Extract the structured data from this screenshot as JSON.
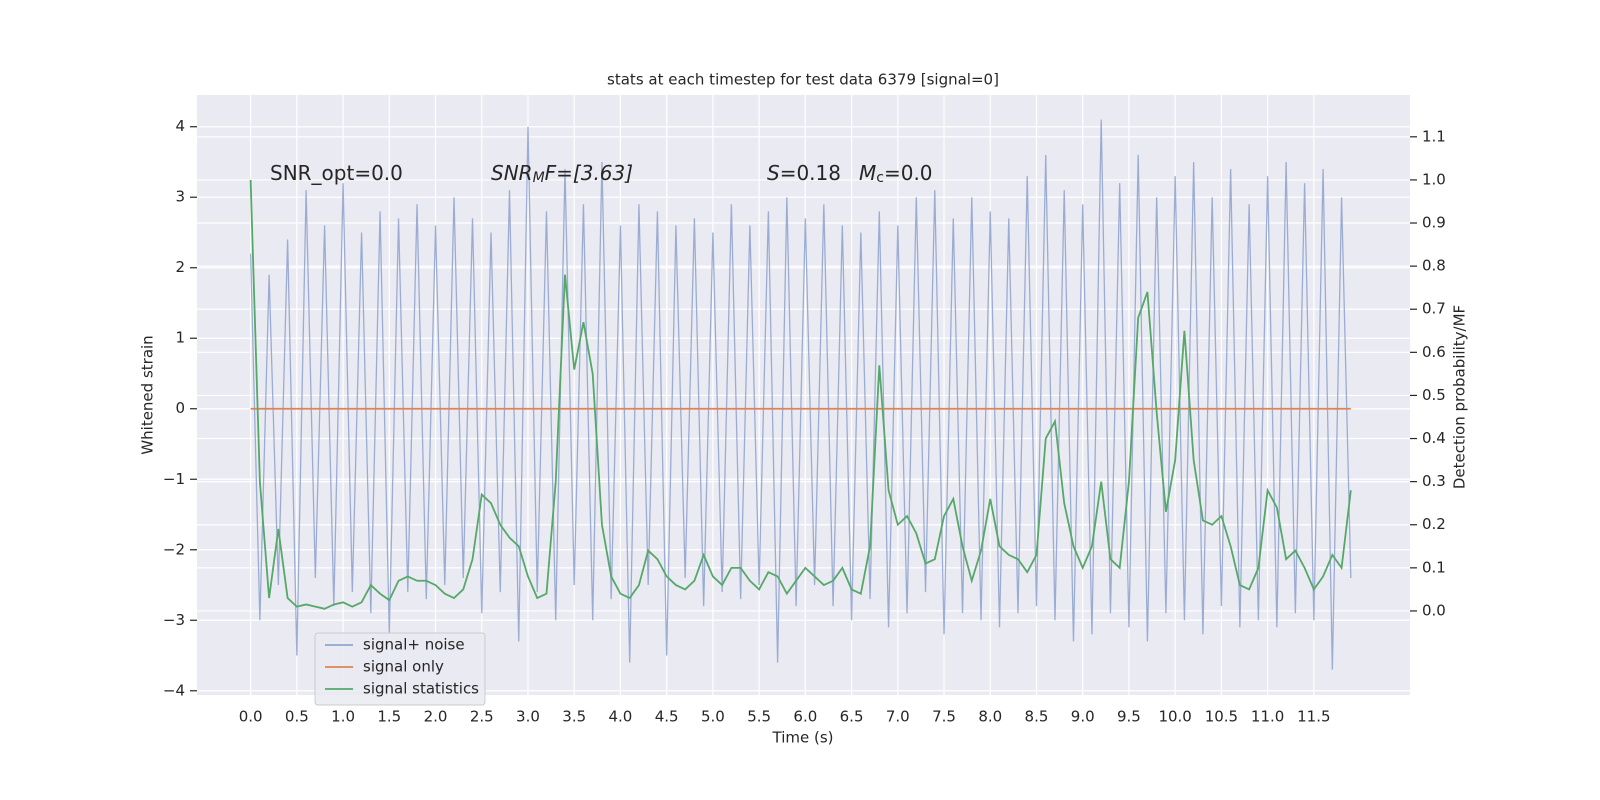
{
  "chart_data": {
    "type": "line",
    "title": "stats at each timestep for test data 6379 [signal=0]",
    "xlabel": "Time (s)",
    "ylabel": "Whitened strain",
    "y2label": "Detection probability/MF",
    "annotations": [
      [
        "SNR_opt=0.0"
      ],
      [
        "SNR",
        "M",
        "F=[3.63]"
      ],
      [
        "S",
        "=0.18",
        "M",
        "c",
        "=0.0"
      ]
    ],
    "x": [
      0.0,
      0.1,
      0.2,
      0.3,
      0.4,
      0.5,
      0.6,
      0.7,
      0.8,
      0.9,
      1.0,
      1.1,
      1.2,
      1.3,
      1.4,
      1.5,
      1.6,
      1.7,
      1.8,
      1.9,
      2.0,
      2.1,
      2.2,
      2.3,
      2.4,
      2.5,
      2.6,
      2.7,
      2.8,
      2.9,
      3.0,
      3.1,
      3.2,
      3.3,
      3.4,
      3.5,
      3.6,
      3.7,
      3.8,
      3.9,
      4.0,
      4.1,
      4.2,
      4.3,
      4.4,
      4.5,
      4.6,
      4.7,
      4.8,
      4.9,
      5.0,
      5.1,
      5.2,
      5.3,
      5.4,
      5.5,
      5.6,
      5.7,
      5.8,
      5.9,
      6.0,
      6.1,
      6.2,
      6.3,
      6.4,
      6.5,
      6.6,
      6.7,
      6.8,
      6.9,
      7.0,
      7.1,
      7.2,
      7.3,
      7.4,
      7.5,
      7.6,
      7.7,
      7.8,
      7.9,
      8.0,
      8.1,
      8.2,
      8.3,
      8.4,
      8.5,
      8.6,
      8.7,
      8.8,
      8.9,
      9.0,
      9.1,
      9.2,
      9.3,
      9.4,
      9.5,
      9.6,
      9.7,
      9.8,
      9.9,
      10.0,
      10.1,
      10.2,
      10.3,
      10.4,
      10.5,
      10.6,
      10.7,
      10.8,
      10.9,
      11.0,
      11.1,
      11.2,
      11.3,
      11.4,
      11.5,
      11.6,
      11.7,
      11.8,
      11.9
    ],
    "series": [
      {
        "name": "signal+ noise",
        "color": "#92a5cf",
        "values": [
          2.2,
          -3.0,
          1.9,
          -2.5,
          2.4,
          -3.5,
          3.1,
          -2.4,
          2.6,
          -2.8,
          3.2,
          -2.6,
          2.5,
          -2.9,
          2.8,
          -3.2,
          2.7,
          -2.6,
          2.9,
          -2.7,
          2.6,
          -2.5,
          3.0,
          -2.4,
          2.7,
          -2.9,
          2.5,
          -2.6,
          3.1,
          -3.3,
          4.0,
          -2.6,
          2.8,
          -3.0,
          3.4,
          -2.5,
          2.9,
          -3.0,
          3.5,
          -2.7,
          2.6,
          -3.6,
          2.9,
          -2.5,
          2.8,
          -3.5,
          2.6,
          -2.4,
          2.7,
          -2.8,
          2.5,
          -2.6,
          2.9,
          -2.7,
          2.6,
          -2.5,
          2.8,
          -3.6,
          3.0,
          -2.8,
          2.7,
          -2.5,
          2.9,
          -2.8,
          2.6,
          -3.0,
          2.5,
          -2.7,
          2.8,
          -3.1,
          2.6,
          -2.9,
          3.0,
          -2.6,
          3.1,
          -3.2,
          2.7,
          -2.9,
          3.0,
          -3.0,
          2.8,
          -3.1,
          2.7,
          -2.9,
          3.3,
          -2.8,
          3.6,
          -3.0,
          3.1,
          -3.3,
          2.9,
          -3.2,
          4.1,
          -2.9,
          3.2,
          -3.1,
          3.6,
          -3.3,
          3.0,
          -2.9,
          3.3,
          -3.0,
          3.5,
          -3.2,
          3.0,
          -2.8,
          3.4,
          -3.1,
          2.9,
          -3.0,
          3.3,
          -3.1,
          3.5,
          -2.9,
          3.2,
          -3.0,
          3.4,
          -3.7,
          3.0,
          -2.4
        ]
      },
      {
        "name": "signal only",
        "color": "#dd8452",
        "values": [
          0,
          0,
          0,
          0,
          0,
          0,
          0,
          0,
          0,
          0,
          0,
          0,
          0,
          0,
          0,
          0,
          0,
          0,
          0,
          0,
          0,
          0,
          0,
          0,
          0,
          0,
          0,
          0,
          0,
          0,
          0,
          0,
          0,
          0,
          0,
          0,
          0,
          0,
          0,
          0,
          0,
          0,
          0,
          0,
          0,
          0,
          0,
          0,
          0,
          0,
          0,
          0,
          0,
          0,
          0,
          0,
          0,
          0,
          0,
          0,
          0,
          0,
          0,
          0,
          0,
          0,
          0,
          0,
          0,
          0,
          0,
          0,
          0,
          0,
          0,
          0,
          0,
          0,
          0,
          0,
          0,
          0,
          0,
          0,
          0,
          0,
          0,
          0,
          0,
          0,
          0,
          0,
          0,
          0,
          0,
          0,
          0,
          0,
          0,
          0,
          0,
          0,
          0,
          0,
          0,
          0,
          0,
          0,
          0,
          0,
          0,
          0,
          0,
          0,
          0,
          0,
          0,
          0,
          0,
          0
        ]
      },
      {
        "name": "signal statistics",
        "color": "#55a868",
        "axis": "y2",
        "values": [
          1.0,
          0.3,
          0.03,
          0.19,
          0.03,
          0.01,
          0.015,
          0.01,
          0.005,
          0.015,
          0.02,
          0.01,
          0.02,
          0.06,
          0.04,
          0.025,
          0.07,
          0.08,
          0.07,
          0.07,
          0.06,
          0.04,
          0.03,
          0.05,
          0.12,
          0.27,
          0.25,
          0.2,
          0.17,
          0.15,
          0.08,
          0.03,
          0.04,
          0.3,
          0.78,
          0.56,
          0.67,
          0.55,
          0.2,
          0.08,
          0.04,
          0.03,
          0.06,
          0.14,
          0.12,
          0.08,
          0.06,
          0.05,
          0.07,
          0.13,
          0.08,
          0.06,
          0.1,
          0.1,
          0.07,
          0.05,
          0.09,
          0.08,
          0.04,
          0.07,
          0.1,
          0.08,
          0.06,
          0.07,
          0.1,
          0.05,
          0.04,
          0.15,
          0.57,
          0.28,
          0.2,
          0.22,
          0.18,
          0.11,
          0.12,
          0.22,
          0.26,
          0.15,
          0.07,
          0.14,
          0.26,
          0.15,
          0.13,
          0.12,
          0.09,
          0.13,
          0.4,
          0.44,
          0.25,
          0.15,
          0.1,
          0.15,
          0.3,
          0.12,
          0.1,
          0.3,
          0.68,
          0.74,
          0.46,
          0.23,
          0.35,
          0.65,
          0.35,
          0.21,
          0.2,
          0.22,
          0.15,
          0.06,
          0.05,
          0.1,
          0.28,
          0.24,
          0.12,
          0.14,
          0.1,
          0.05,
          0.08,
          0.13,
          0.1,
          0.28
        ]
      }
    ],
    "xlim": [
      -0.58,
      12.54
    ],
    "xticks": [
      {
        "value": 0,
        "label": "0.0"
      },
      0.5,
      {
        "value": 1,
        "label": "1.0"
      },
      1.5,
      {
        "value": 2,
        "label": "2.0"
      },
      2.5,
      {
        "value": 3,
        "label": "3.0"
      },
      3.5,
      {
        "value": 4,
        "label": "4.0"
      },
      4.5,
      {
        "value": 5,
        "label": "5.0"
      },
      5.5,
      {
        "value": 6,
        "label": "6.0"
      },
      6.5,
      {
        "value": 7,
        "label": "7.0"
      },
      7.5,
      {
        "value": 8,
        "label": "8.0"
      },
      8.5,
      {
        "value": 9,
        "label": "9.0"
      },
      9.5,
      {
        "value": 10,
        "label": "10.0"
      },
      10.5,
      {
        "value": 11,
        "label": "11.0"
      },
      11.5
    ],
    "ylim": [
      -4.06,
      4.45
    ],
    "yticks": [
      {
        "value": -4,
        "label": "−4"
      },
      {
        "value": -3,
        "label": "−3"
      },
      {
        "value": -2,
        "label": "−2"
      },
      {
        "value": -1,
        "label": "−1"
      },
      0,
      1,
      2,
      3,
      4
    ],
    "y2lim": [
      -0.195,
      1.197
    ],
    "y2ticks": [
      {
        "value": 0,
        "label": "0.0"
      },
      0.1,
      0.2,
      0.3,
      0.4,
      0.5,
      0.6,
      0.7,
      0.8,
      0.9,
      {
        "value": 1,
        "label": "1.0"
      },
      1.1
    ],
    "grid": true,
    "legend": "lower left"
  }
}
